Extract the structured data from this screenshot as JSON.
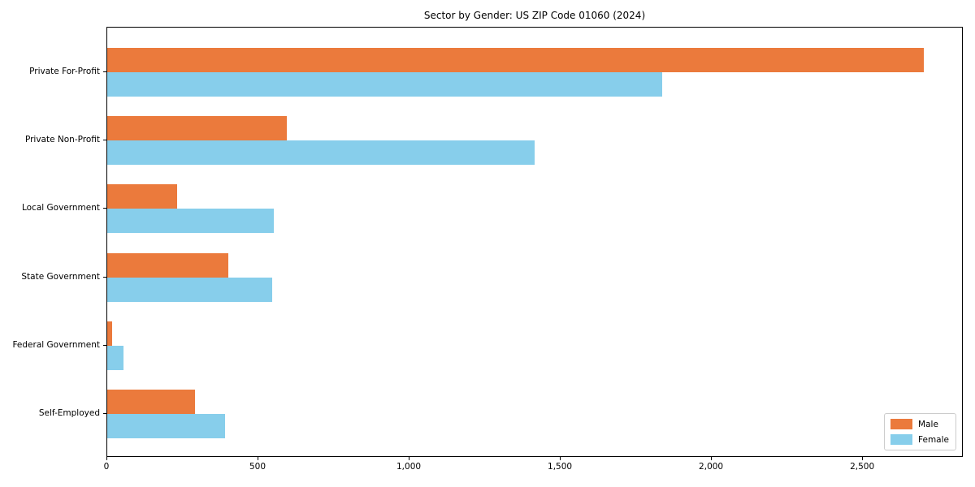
{
  "chart_data": {
    "type": "bar",
    "orientation": "horizontal",
    "title": "Sector by Gender: US ZIP Code 01060 (2024)",
    "categories": [
      "Private For-Profit",
      "Private Non-Profit",
      "Local Government",
      "State Government",
      "Federal Government",
      "Self-Employed"
    ],
    "series": [
      {
        "name": "Male",
        "color": "#EB7A3C",
        "values": [
          2700,
          595,
          230,
          400,
          15,
          290
        ]
      },
      {
        "name": "Female",
        "color": "#87CEEB",
        "values": [
          1835,
          1415,
          550,
          545,
          54,
          390
        ]
      }
    ],
    "xlim": [
      0,
      2833
    ],
    "xticks": [
      0,
      500,
      1000,
      1500,
      2000,
      2500
    ],
    "xtick_labels": [
      "0",
      "500",
      "1,000",
      "1,500",
      "2,000",
      "2,500"
    ],
    "xlabel": "",
    "ylabel": "",
    "grid": false,
    "legend": {
      "position": "lower right",
      "entries": [
        "Male",
        "Female"
      ]
    }
  }
}
